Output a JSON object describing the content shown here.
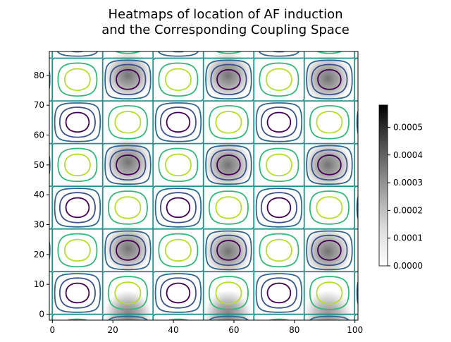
{
  "chart_data": {
    "type": "heatmap",
    "title_lines": [
      "Heatmaps of location of AF induction",
      "and the Corresponding Coupling Space"
    ],
    "xlabel": "",
    "ylabel": "",
    "xlim": [
      -1,
      101
    ],
    "ylim": [
      -2,
      88
    ],
    "x_ticks": [
      0,
      20,
      40,
      60,
      80,
      100
    ],
    "y_ticks": [
      0,
      10,
      20,
      30,
      40,
      50,
      60,
      70,
      80
    ],
    "x_tick_labels": [
      "0",
      "20",
      "40",
      "60",
      "80",
      "100"
    ],
    "y_tick_labels": [
      "0",
      "10",
      "20",
      "30",
      "40",
      "50",
      "60",
      "70",
      "80"
    ],
    "grid": false,
    "heatmap": {
      "cmap": "Greys",
      "hotspots": [
        {
          "x": 25,
          "y": 80,
          "peak": 0.00055
        },
        {
          "x": 58,
          "y": 80,
          "peak": 0.00048
        },
        {
          "x": 91,
          "y": 79,
          "peak": 0.00045
        },
        {
          "x": 25,
          "y": 51,
          "peak": 0.0005
        },
        {
          "x": 58,
          "y": 50,
          "peak": 0.00052
        },
        {
          "x": 91,
          "y": 50,
          "peak": 0.00046
        },
        {
          "x": 25,
          "y": 22,
          "peak": 0.00048
        },
        {
          "x": 58,
          "y": 21,
          "peak": 0.0005
        },
        {
          "x": 91,
          "y": 21,
          "peak": 0.00046
        },
        {
          "x": 25,
          "y": 0,
          "peak": 0.00035
        },
        {
          "x": 58,
          "y": 0,
          "peak": 0.00035
        },
        {
          "x": 91,
          "y": 0,
          "peak": 0.0003
        }
      ]
    },
    "contours": {
      "x_period": 33.3,
      "y_period": 28.6,
      "x_offset": 8.3,
      "y_offset": 7.1,
      "min_centers_x": [
        8.3,
        41.6,
        74.9
      ],
      "min_centers_y": [
        7.1,
        35.7,
        64.3
      ],
      "levels": [
        {
          "level": -0.75,
          "color": "#440154"
        },
        {
          "level": -0.45,
          "color": "#3b528b"
        },
        {
          "level": -0.15,
          "color": "#31688e"
        },
        {
          "level": 0.0,
          "color": "#21918c"
        },
        {
          "level": 0.35,
          "color": "#35b779"
        },
        {
          "level": 0.7,
          "color": "#b5de2b"
        }
      ]
    },
    "colorbar": {
      "ticks": [
        0.0,
        0.0001,
        0.0002,
        0.0003,
        0.0004,
        0.0005
      ],
      "tick_labels": [
        "0.0000",
        "0.0001",
        "0.0002",
        "0.0003",
        "0.0004",
        "0.0005"
      ],
      "vmin": 0,
      "vmax": 0.00058,
      "cmap": "Greys"
    }
  }
}
